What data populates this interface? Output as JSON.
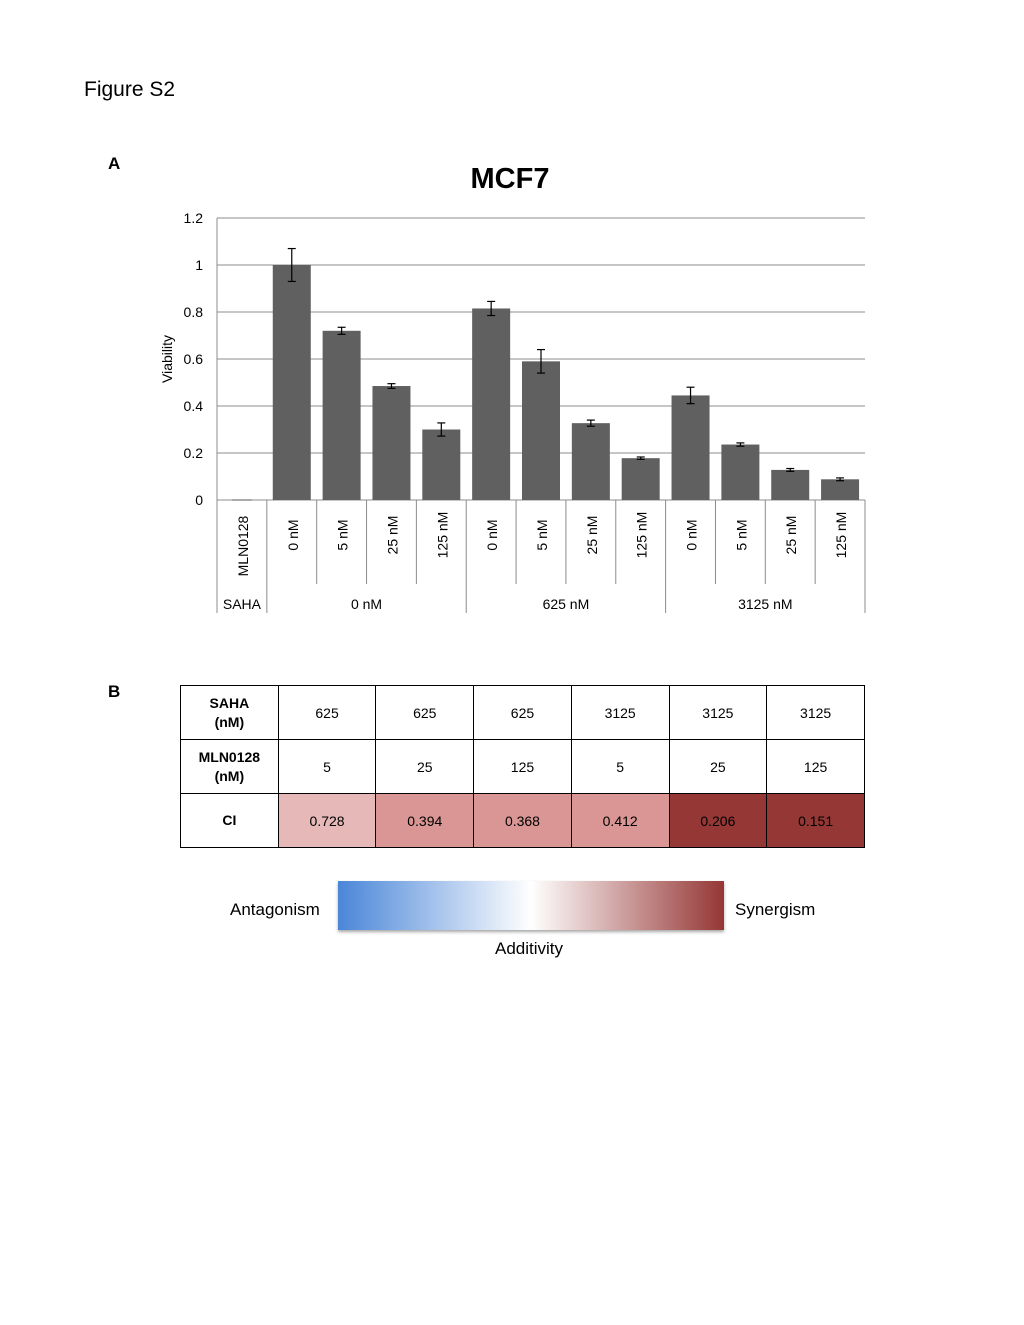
{
  "figure_title": "Figure S2",
  "panel_a_label": "A",
  "panel_b_label": "B",
  "chart_data": {
    "type": "bar",
    "title": "MCF7",
    "ylabel": "Viability",
    "xlabel": "",
    "ylim": [
      0,
      1.2
    ],
    "yticks": [
      "0",
      "0.2",
      "0.4",
      "0.6",
      "0.8",
      "1",
      "1.2"
    ],
    "grid": true,
    "bar_color": "#606060",
    "inner_axis_label": "MLN0128",
    "outer_axis_label": "SAHA",
    "categories": [
      "0 nM",
      "5 nM",
      "25 nM",
      "125 nM",
      "0 nM",
      "5 nM",
      "25 nM",
      "125 nM",
      "0 nM",
      "5 nM",
      "25 nM",
      "125 nM"
    ],
    "groups": [
      {
        "label": "0 nM",
        "count": 4
      },
      {
        "label": "625 nM",
        "count": 4
      },
      {
        "label": "3125 nM",
        "count": 4
      }
    ],
    "values": [
      1.0,
      0.72,
      0.485,
      0.3,
      0.815,
      0.59,
      0.327,
      0.178,
      0.445,
      0.236,
      0.128,
      0.088
    ],
    "errors": [
      0.07,
      0.015,
      0.01,
      0.028,
      0.03,
      0.05,
      0.013,
      0.005,
      0.035,
      0.007,
      0.006,
      0.006
    ]
  },
  "ci_table": {
    "rows": [
      {
        "header": [
          "SAHA",
          "(nM)"
        ],
        "cells": [
          "625",
          "625",
          "625",
          "3125",
          "3125",
          "3125"
        ]
      },
      {
        "header": [
          "MLN0128",
          "(nM)"
        ],
        "cells": [
          "5",
          "25",
          "125",
          "5",
          "25",
          "125"
        ]
      },
      {
        "header": [
          "CI",
          ""
        ],
        "cells": [
          "0.728",
          "0.394",
          "0.368",
          "0.412",
          "0.206",
          "0.151"
        ]
      }
    ],
    "ci_colors": [
      "#e6b8b7",
      "#d99694",
      "#d99694",
      "#d99694",
      "#953735",
      "#953735"
    ]
  },
  "scale": {
    "left_label": "Antagonism",
    "right_label": "Synergism",
    "middle_label": "Additivity",
    "colors": [
      "#4a86d8",
      "#ffffff",
      "#953735"
    ]
  }
}
